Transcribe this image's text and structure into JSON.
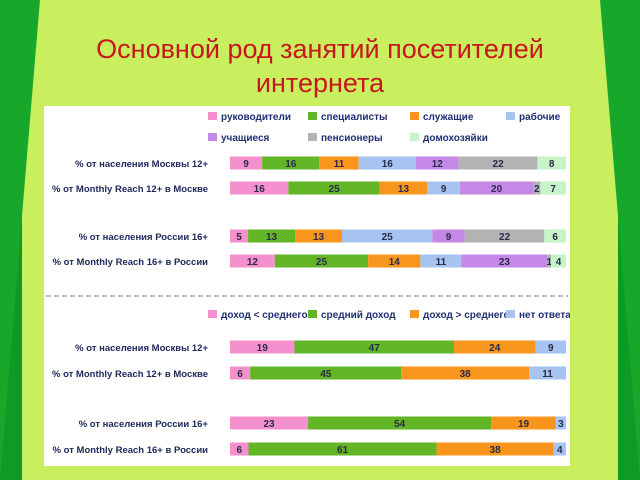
{
  "title_line1": "Основной род занятий посетителей",
  "title_line2": "интернета",
  "colors": {
    "background": "#c9ef5e",
    "stripe": "#17a82b",
    "title": "#c8161e",
    "row_label": "#20295c",
    "legend_label": "#1f2f72"
  },
  "chart_data": [
    {
      "type": "bar",
      "orientation": "horizontal",
      "stacked": true,
      "categories": [
        "% от населения Москвы 12+",
        "% от Monthly Reach 12+ в Москве",
        "% от населения России 16+",
        "% от Monthly Reach 16+ в России"
      ],
      "series": [
        {
          "name": "руководители",
          "color": "#f590cf",
          "values": [
            9,
            16,
            5,
            12
          ]
        },
        {
          "name": "специалисты",
          "color": "#62b626",
          "values": [
            16,
            25,
            13,
            25
          ]
        },
        {
          "name": "служащие",
          "color": "#f8951d",
          "values": [
            11,
            13,
            13,
            14
          ]
        },
        {
          "name": "рабочие",
          "color": "#a6c4ef",
          "values": [
            16,
            9,
            25,
            11
          ]
        },
        {
          "name": "учащиеся",
          "color": "#c489e6",
          "values": [
            12,
            20,
            9,
            23
          ]
        },
        {
          "name": "пенсионеры",
          "color": "#b3b3b3",
          "values": [
            22,
            2,
            22,
            1
          ]
        },
        {
          "name": "домохозяйки",
          "color": "#c6f4c6",
          "values": [
            8,
            7,
            6,
            4
          ]
        }
      ],
      "legend_position": "top"
    },
    {
      "type": "bar",
      "orientation": "horizontal",
      "stacked": true,
      "categories": [
        "% от населения Москвы 12+",
        "% от Monthly Reach 12+ в Москве",
        "% от населения России 16+",
        "% от Monthly Reach 16+ в России"
      ],
      "series": [
        {
          "name": "доход < среднего",
          "color": "#f590cf",
          "values": [
            19,
            6,
            23,
            6
          ]
        },
        {
          "name": "средний доход",
          "color": "#62b626",
          "values": [
            47,
            45,
            54,
            61
          ]
        },
        {
          "name": "доход > среднего",
          "color": "#f8951d",
          "values": [
            24,
            38,
            19,
            38
          ]
        },
        {
          "name": "нет ответа",
          "color": "#a6c4ef",
          "values": [
            9,
            11,
            3,
            4
          ]
        }
      ],
      "legend_position": "top"
    }
  ]
}
